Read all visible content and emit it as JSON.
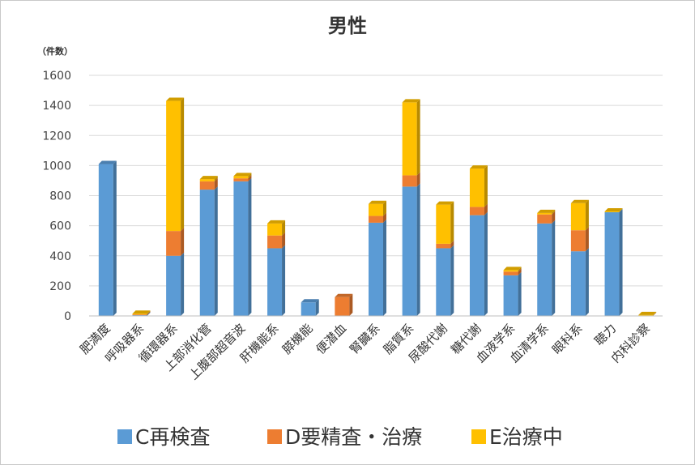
{
  "chart_data": {
    "type": "bar",
    "stacked": true,
    "title": "男性",
    "ylabel": "（件数）",
    "ylim": [
      0,
      1600
    ],
    "yticks": [
      "0",
      "200",
      "400",
      "600",
      "800",
      "1000",
      "1200",
      "1400",
      "1600"
    ],
    "grid": true,
    "legend_position": "bottom",
    "categories": [
      "肥満度",
      "呼吸器系",
      "循環器系",
      "上部消化管",
      "上腹部超音波",
      "肝機能系",
      "膵機能",
      "便潜血",
      "腎臓系",
      "脂質系",
      "尿酸代謝",
      "糖代謝",
      "血液学系",
      "血清学系",
      "眼科系",
      "聴力",
      "内科診察"
    ],
    "series": [
      {
        "name": "C再検査",
        "color": "#5B9BD5",
        "values": [
          1010,
          5,
          400,
          840,
          895,
          450,
          90,
          0,
          620,
          860,
          450,
          670,
          270,
          615,
          430,
          690,
          0
        ]
      },
      {
        "name": "D要精査・治療",
        "color": "#ED7D31",
        "values": [
          0,
          5,
          165,
          55,
          20,
          85,
          0,
          125,
          45,
          75,
          30,
          55,
          25,
          60,
          140,
          0,
          3
        ]
      },
      {
        "name": "E治療中",
        "color": "#FFC000",
        "values": [
          0,
          5,
          865,
          15,
          15,
          80,
          0,
          0,
          80,
          485,
          260,
          255,
          10,
          10,
          180,
          5,
          3
        ]
      }
    ]
  }
}
